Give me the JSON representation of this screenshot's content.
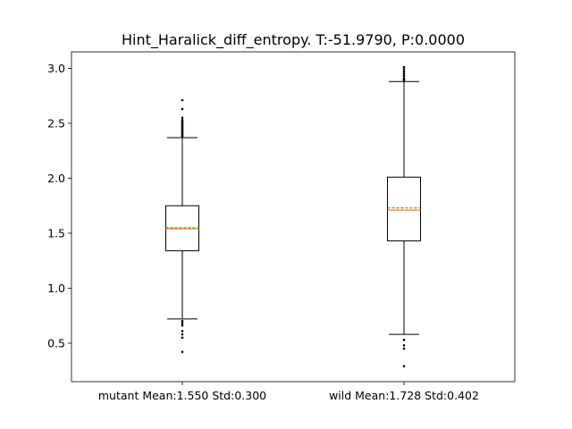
{
  "chart_data": {
    "type": "box",
    "title": "Hint_Haralick_diff_entropy. T:-51.9790, P:0.0000",
    "xlabel": "",
    "ylabel": "",
    "ylim": [
      0.15,
      3.15
    ],
    "yticks": [
      0.5,
      1.0,
      1.5,
      2.0,
      2.5,
      3.0
    ],
    "ytick_labels": [
      "0.5",
      "1.0",
      "1.5",
      "2.0",
      "2.5",
      "3.0"
    ],
    "grid": false,
    "colors": {
      "box": "#000000",
      "median": "#ff7f0e",
      "mean": "#2ca02c",
      "flier": "#000000"
    },
    "boxes": [
      {
        "label": "mutant Mean:1.550 Std:0.300",
        "whisker_low": 0.72,
        "q1": 1.34,
        "median": 1.54,
        "mean": 1.55,
        "q3": 1.75,
        "whisker_high": 2.37,
        "fliers": [
          0.42,
          0.55,
          0.58,
          0.61,
          0.66,
          0.68,
          0.7,
          2.38,
          2.39,
          2.4,
          2.41,
          2.42,
          2.43,
          2.44,
          2.45,
          2.46,
          2.47,
          2.48,
          2.49,
          2.5,
          2.51,
          2.52,
          2.53,
          2.55,
          2.63,
          2.71
        ]
      },
      {
        "label": "wild Mean:1.728 Std:0.402",
        "whisker_low": 0.58,
        "q1": 1.43,
        "median": 1.71,
        "mean": 1.73,
        "q3": 2.01,
        "whisker_high": 2.88,
        "fliers": [
          0.29,
          0.45,
          0.48,
          0.53,
          2.89,
          2.9,
          2.91,
          2.93,
          2.95,
          2.97,
          2.99,
          3.01
        ]
      }
    ]
  }
}
